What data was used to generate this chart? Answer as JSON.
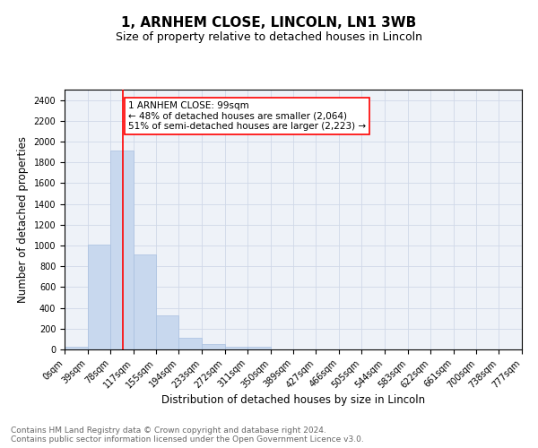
{
  "title": "1, ARNHEM CLOSE, LINCOLN, LN1 3WB",
  "subtitle": "Size of property relative to detached houses in Lincoln",
  "xlabel": "Distribution of detached houses by size in Lincoln",
  "ylabel": "Number of detached properties",
  "bar_color": "#c8d8ee",
  "bar_edgecolor": "#a8c0e0",
  "grid_color": "#d0d8e8",
  "background_color": "#eef2f8",
  "vline_x": 99,
  "vline_color": "red",
  "annotation_text": "1 ARNHEM CLOSE: 99sqm\n← 48% of detached houses are smaller (2,064)\n51% of semi-detached houses are larger (2,223) →",
  "annotation_box_color": "white",
  "annotation_box_edgecolor": "red",
  "bins": [
    0,
    39,
    78,
    117,
    155,
    194,
    233,
    272,
    311,
    350,
    389,
    427,
    466,
    505,
    544,
    583,
    622,
    661,
    700,
    738,
    777
  ],
  "bin_labels": [
    "0sqm",
    "39sqm",
    "78sqm",
    "117sqm",
    "155sqm",
    "194sqm",
    "233sqm",
    "272sqm",
    "311sqm",
    "350sqm",
    "389sqm",
    "427sqm",
    "466sqm",
    "505sqm",
    "544sqm",
    "583sqm",
    "622sqm",
    "661sqm",
    "700sqm",
    "738sqm",
    "777sqm"
  ],
  "bar_heights": [
    25,
    1010,
    1910,
    910,
    325,
    110,
    55,
    30,
    25,
    0,
    0,
    0,
    0,
    0,
    0,
    0,
    0,
    0,
    0,
    0
  ],
  "ylim": [
    0,
    2500
  ],
  "yticks": [
    0,
    200,
    400,
    600,
    800,
    1000,
    1200,
    1400,
    1600,
    1800,
    2000,
    2200,
    2400
  ],
  "footnote": "Contains HM Land Registry data © Crown copyright and database right 2024.\nContains public sector information licensed under the Open Government Licence v3.0.",
  "title_fontsize": 11,
  "subtitle_fontsize": 9,
  "xlabel_fontsize": 8.5,
  "ylabel_fontsize": 8.5,
  "tick_fontsize": 7,
  "annot_fontsize": 7.5,
  "footnote_fontsize": 6.5
}
